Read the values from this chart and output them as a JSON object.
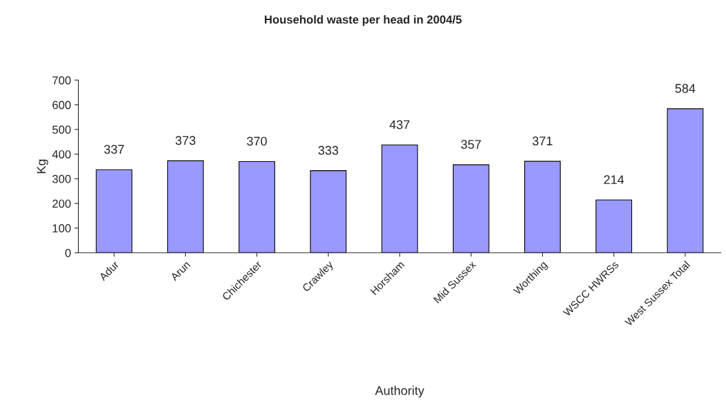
{
  "chart_data": {
    "type": "bar",
    "title": "Household waste per head in 2004/5",
    "xlabel": "Authority",
    "ylabel": "Kg",
    "categories": [
      "Adur",
      "Arun",
      "Chichester",
      "Crawley",
      "Horsham",
      "Mid Sussex",
      "Worthing",
      "WSCC HWRSs",
      "West Sussex Total"
    ],
    "values": [
      337,
      373,
      370,
      333,
      437,
      357,
      371,
      214,
      584
    ],
    "color": "#9999ff",
    "ylim": [
      0,
      700
    ],
    "yticks": [
      0,
      100,
      200,
      300,
      400,
      500,
      600,
      700
    ],
    "grid": false,
    "data_labels": true
  }
}
